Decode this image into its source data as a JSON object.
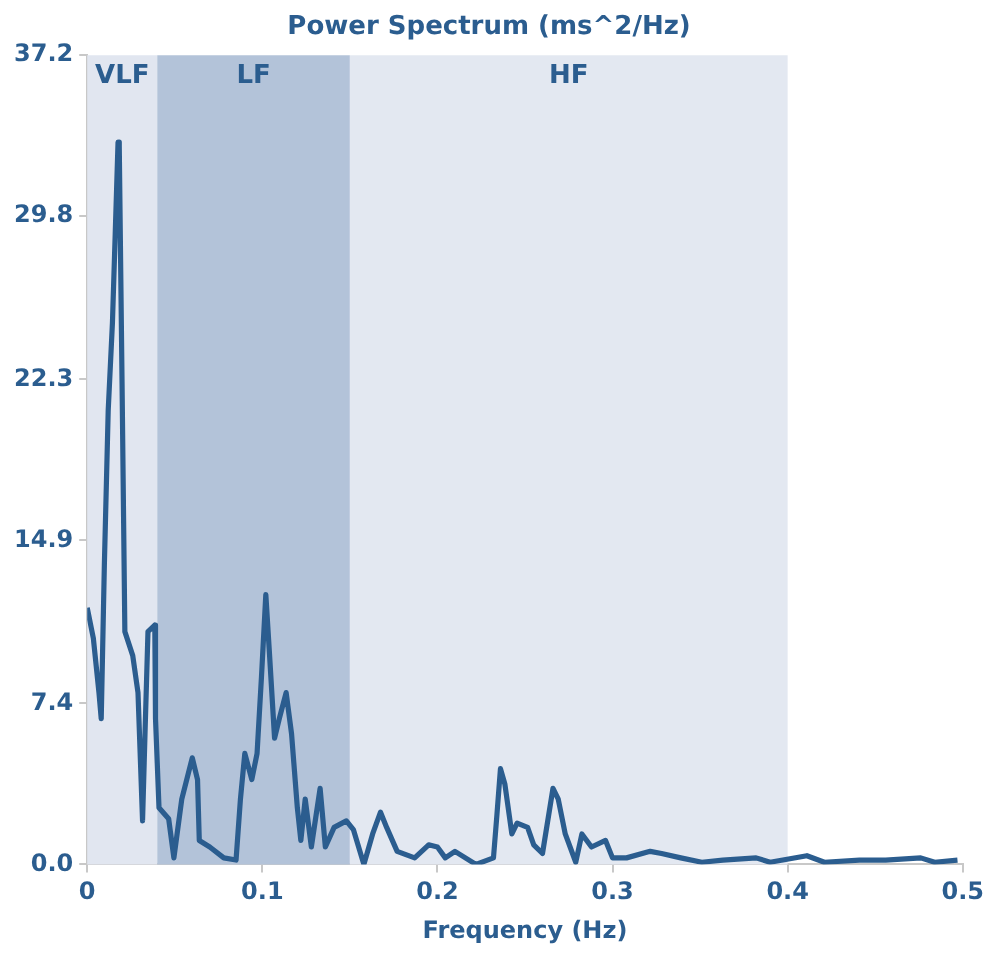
{
  "chart_data": {
    "type": "line",
    "title": "Power Spectrum (ms^2/Hz)",
    "xlabel": "Frequency (Hz)",
    "x": [
      0,
      0.0035,
      0.0067,
      0.008,
      0.0098,
      0.012,
      0.0144,
      0.016,
      0.0176,
      0.0183,
      0.0199,
      0.0215,
      0.026,
      0.029,
      0.0316,
      0.033,
      0.0347,
      0.0386,
      0.039,
      0.041,
      0.0465,
      0.0495,
      0.054,
      0.06,
      0.063,
      0.064,
      0.07,
      0.078,
      0.085,
      0.0875,
      0.09,
      0.094,
      0.097,
      0.0995,
      0.102,
      0.104,
      0.107,
      0.1097,
      0.1136,
      0.1167,
      0.12,
      0.122,
      0.1245,
      0.128,
      0.133,
      0.136,
      0.141,
      0.148,
      0.152,
      0.158,
      0.163,
      0.1675,
      0.171,
      0.177,
      0.187,
      0.195,
      0.2,
      0.2045,
      0.21,
      0.222,
      0.232,
      0.234,
      0.236,
      0.2385,
      0.2425,
      0.2455,
      0.2515,
      0.255,
      0.26,
      0.266,
      0.269,
      0.273,
      0.279,
      0.2825,
      0.288,
      0.296,
      0.3,
      0.308,
      0.3215,
      0.328,
      0.339,
      0.351,
      0.363,
      0.382,
      0.39,
      0.411,
      0.421,
      0.441,
      0.456,
      0.476,
      0.484,
      0.497
    ],
    "values": [
      11.8,
      10.4,
      7.9,
      6.7,
      13.8,
      20.9,
      24.9,
      29,
      33.2,
      33,
      22.1,
      10.7,
      9.6,
      7.9,
      2,
      6,
      10.7,
      11,
      6.7,
      2.6,
      2.1,
      0.3,
      3,
      4.9,
      3.9,
      1.1,
      0.8,
      0.3,
      0.2,
      3,
      5.1,
      3.9,
      5.1,
      8.6,
      12.4,
      9.8,
      5.8,
      6.7,
      7.9,
      6,
      2.6,
      1.1,
      3,
      0.8,
      3.5,
      0.8,
      1.7,
      2,
      1.6,
      0,
      1.4,
      2.4,
      1.7,
      0.6,
      0.3,
      0.9,
      0.8,
      0.3,
      0.6,
      0,
      0.3,
      2.3,
      4.4,
      3.7,
      1.4,
      1.9,
      1.7,
      0.9,
      0.5,
      3.5,
      3,
      1.4,
      0.1,
      1.4,
      0.8,
      1.1,
      0.3,
      0.3,
      0.6,
      0.5,
      0.3,
      0.1,
      0.2,
      0.3,
      0.1,
      0.4,
      0.1,
      0.2,
      0.2,
      0.3,
      0.1,
      0.2
    ],
    "color": "#2b5d8f",
    "marker": "none",
    "grid": false,
    "xlim": [
      0,
      0.5
    ],
    "xticks": [
      0,
      0.1,
      0.2,
      0.3,
      0.4,
      0.5
    ],
    "ylim": [
      0,
      37.2
    ],
    "yticks": [
      {
        "value": 0,
        "label": "0.0"
      },
      7.4,
      14.9,
      22.3,
      29.8,
      37.2
    ],
    "bands": [
      {
        "axis": "x",
        "from": 0,
        "to": 0.04,
        "label": "VLF",
        "color": "#e1e6f0"
      },
      {
        "axis": "x",
        "from": 0.04,
        "to": 0.15,
        "label": "LF",
        "color": "#b3c3d9"
      },
      {
        "axis": "x",
        "from": 0.15,
        "to": 0.4,
        "label": "HF",
        "color": "#e3e8f1"
      }
    ]
  }
}
